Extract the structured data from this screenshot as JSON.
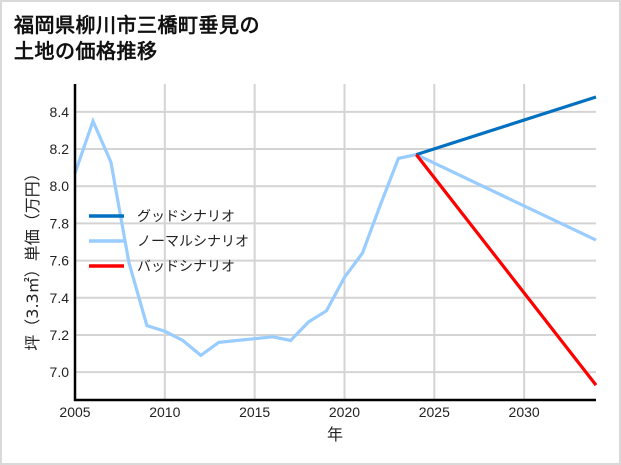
{
  "title_line1": "福岡県柳川市三橋町垂見の",
  "title_line2": "土地の価格推移",
  "chart_data": {
    "type": "line",
    "title": "福岡県柳川市三橋町垂見の土地の価格推移",
    "xlabel": "年",
    "ylabel": "坪（3.3㎡）単価（万円）",
    "xlim": [
      2005,
      2034
    ],
    "ylim": [
      6.85,
      8.55
    ],
    "xticks": [
      2005,
      2010,
      2015,
      2020,
      2025,
      2030
    ],
    "yticks": [
      7.0,
      7.2,
      7.4,
      7.6,
      7.8,
      8.0,
      8.2,
      8.4
    ],
    "grid": true,
    "legend_position": "center-left",
    "series": [
      {
        "name": "グッドシナリオ",
        "color": "#0070c0",
        "x": [
          2024,
          2034
        ],
        "values": [
          8.17,
          8.48
        ]
      },
      {
        "name": "ノーマルシナリオ",
        "color": "#99ccff",
        "x": [
          2005,
          2006,
          2007,
          2008,
          2009,
          2010,
          2011,
          2012,
          2013,
          2014,
          2015,
          2016,
          2017,
          2018,
          2019,
          2020,
          2021,
          2022,
          2023,
          2024,
          2034
        ],
        "values": [
          8.07,
          8.35,
          8.13,
          7.59,
          7.25,
          7.22,
          7.17,
          7.09,
          7.16,
          7.17,
          7.18,
          7.19,
          7.17,
          7.27,
          7.33,
          7.51,
          7.64,
          7.9,
          8.15,
          8.17,
          7.71
        ]
      },
      {
        "name": "バッドシナリオ",
        "color": "#ff0000",
        "x": [
          2024,
          2034
        ],
        "values": [
          8.17,
          6.93
        ]
      }
    ]
  }
}
